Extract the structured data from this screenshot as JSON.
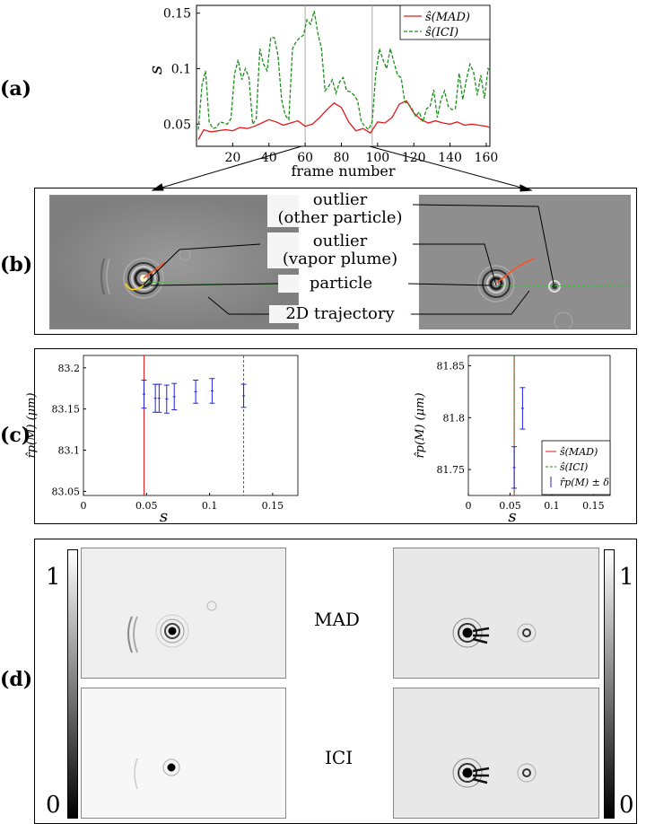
{
  "panels": {
    "a": "(a)",
    "b": "(b)",
    "c": "(c)",
    "d": "(d)"
  },
  "chart_a": {
    "type": "line",
    "xlabel": "frame number",
    "ylabel": "s",
    "xlim": [
      0,
      162
    ],
    "ylim": [
      0.03,
      0.157
    ],
    "xticks": [
      20,
      40,
      60,
      80,
      100,
      120,
      140,
      160
    ],
    "yticks": [
      0.05,
      0.1,
      0.15
    ],
    "ytick_labels": [
      "0.05",
      "0.1",
      "0.15"
    ],
    "markers": [
      60,
      97
    ],
    "legend": [
      "ŝ(MAD)",
      "ŝ(ICI)"
    ],
    "legend_position": "top-right",
    "colors": {
      "mad": "#e31a1c",
      "ici": "#1a8f1a"
    },
    "series": [
      {
        "name": "ŝ(MAD)",
        "style": "solid",
        "x": [
          1,
          4,
          8,
          12,
          16,
          20,
          24,
          28,
          32,
          36,
          40,
          44,
          48,
          52,
          56,
          60,
          64,
          68,
          72,
          76,
          80,
          84,
          88,
          92,
          96,
          100,
          104,
          108,
          112,
          116,
          120,
          124,
          128,
          132,
          136,
          140,
          144,
          148,
          152,
          156,
          160,
          162
        ],
        "y": [
          0.036,
          0.045,
          0.043,
          0.044,
          0.045,
          0.044,
          0.047,
          0.046,
          0.048,
          0.051,
          0.054,
          0.052,
          0.049,
          0.051,
          0.053,
          0.048,
          0.05,
          0.056,
          0.063,
          0.069,
          0.065,
          0.052,
          0.044,
          0.046,
          0.042,
          0.052,
          0.051,
          0.056,
          0.068,
          0.071,
          0.06,
          0.054,
          0.051,
          0.053,
          0.051,
          0.05,
          0.052,
          0.049,
          0.05,
          0.049,
          0.048,
          0.047
        ]
      },
      {
        "name": "ŝ(ICI)",
        "style": "dashed",
        "x": [
          1,
          3,
          5,
          7,
          9,
          11,
          13,
          15,
          17,
          19,
          21,
          23,
          25,
          27,
          29,
          31,
          33,
          35,
          37,
          39,
          41,
          43,
          45,
          47,
          49,
          51,
          53,
          55,
          57,
          59,
          61,
          63,
          65,
          67,
          69,
          71,
          73,
          75,
          77,
          79,
          81,
          83,
          85,
          87,
          89,
          91,
          93,
          95,
          97,
          99,
          101,
          103,
          105,
          107,
          109,
          111,
          113,
          115,
          117,
          119,
          121,
          123,
          125,
          127,
          129,
          131,
          133,
          135,
          137,
          139,
          141,
          143,
          145,
          147,
          149,
          151,
          153,
          155,
          157,
          159,
          161,
          162
        ],
        "y": [
          0.045,
          0.085,
          0.098,
          0.052,
          0.046,
          0.047,
          0.052,
          0.051,
          0.05,
          0.055,
          0.095,
          0.108,
          0.09,
          0.1,
          0.092,
          0.05,
          0.055,
          0.118,
          0.104,
          0.098,
          0.128,
          0.128,
          0.112,
          0.072,
          0.058,
          0.054,
          0.118,
          0.124,
          0.128,
          0.13,
          0.144,
          0.14,
          0.152,
          0.132,
          0.118,
          0.08,
          0.084,
          0.09,
          0.078,
          0.088,
          0.092,
          0.08,
          0.079,
          0.076,
          0.071,
          0.052,
          0.048,
          0.045,
          0.052,
          0.095,
          0.118,
          0.108,
          0.1,
          0.118,
          0.106,
          0.094,
          0.092,
          0.07,
          0.068,
          0.064,
          0.057,
          0.061,
          0.052,
          0.064,
          0.066,
          0.081,
          0.056,
          0.072,
          0.08,
          0.066,
          0.063,
          0.064,
          0.096,
          0.072,
          0.09,
          0.104,
          0.097,
          0.076,
          0.094,
          0.073,
          0.1,
          0.098
        ]
      }
    ]
  },
  "panel_b_annotations": {
    "outlier_other_1": "outlier",
    "outlier_other_2": "(other particle)",
    "outlier_vapor_1": "outlier",
    "outlier_vapor_2": "(vapor plume)",
    "particle": "particle",
    "trajectory": "2D trajectory"
  },
  "charts_c": [
    {
      "type": "errorbar",
      "xlim": [
        0,
        0.17
      ],
      "ylim": [
        83.045,
        83.215
      ],
      "xticks": [
        0,
        0.05,
        0.1,
        0.15
      ],
      "xtick_labels": [
        "0",
        "0.05",
        "0.1",
        "0.15"
      ],
      "yticks": [
        83.05,
        83.1,
        83.15,
        83.2
      ],
      "ytick_labels": [
        "83.05",
        "83.1",
        "83.15",
        "83.2"
      ],
      "xlabel": "s",
      "ylabel": "r̂p(M) (μm)",
      "vlines": [
        {
          "name": "ŝ(MAD)",
          "x": 0.048,
          "style": "solid"
        },
        {
          "name": "ŝ(ICI)",
          "x": 0.127,
          "style": "dashed"
        }
      ],
      "points": [
        {
          "x": 0.048,
          "y": 83.168,
          "err": 0.017
        },
        {
          "x": 0.057,
          "y": 83.163,
          "err": 0.017
        },
        {
          "x": 0.06,
          "y": 83.163,
          "err": 0.017
        },
        {
          "x": 0.066,
          "y": 83.162,
          "err": 0.017
        },
        {
          "x": 0.072,
          "y": 83.165,
          "err": 0.016
        },
        {
          "x": 0.089,
          "y": 83.171,
          "err": 0.014
        },
        {
          "x": 0.102,
          "y": 83.172,
          "err": 0.015
        },
        {
          "x": 0.127,
          "y": 83.166,
          "err": 0.014
        }
      ]
    },
    {
      "type": "errorbar",
      "xlim": [
        0,
        0.17
      ],
      "ylim": [
        81.725,
        81.86
      ],
      "xticks": [
        0,
        0.05,
        0.1,
        0.15
      ],
      "xtick_labels": [
        "0",
        "0.05",
        "0.1",
        "0.15"
      ],
      "yticks": [
        81.75,
        81.8,
        81.85
      ],
      "ytick_labels": [
        "81.75",
        "81.8",
        "81.85"
      ],
      "xlabel": "s",
      "ylabel": "r̂p(M) (μm)",
      "vlines": [
        {
          "name": "ŝ(MAD)",
          "x": 0.055,
          "style": "solid"
        },
        {
          "name": "ŝ(ICI)",
          "x": 0.055,
          "style": "dashed"
        }
      ],
      "points": [
        {
          "x": 0.055,
          "y": 81.752,
          "err": 0.02
        },
        {
          "x": 0.065,
          "y": 81.809,
          "err": 0.02
        }
      ],
      "legend": [
        "ŝ(MAD)",
        "ŝ(ICI)",
        "r̂p(M) ± δ"
      ],
      "legend_position": "bottom-right"
    }
  ],
  "panel_d": {
    "row_labels": [
      "MAD",
      "ICI"
    ],
    "colorbar": {
      "max_label": "1",
      "min_label": "0"
    }
  }
}
